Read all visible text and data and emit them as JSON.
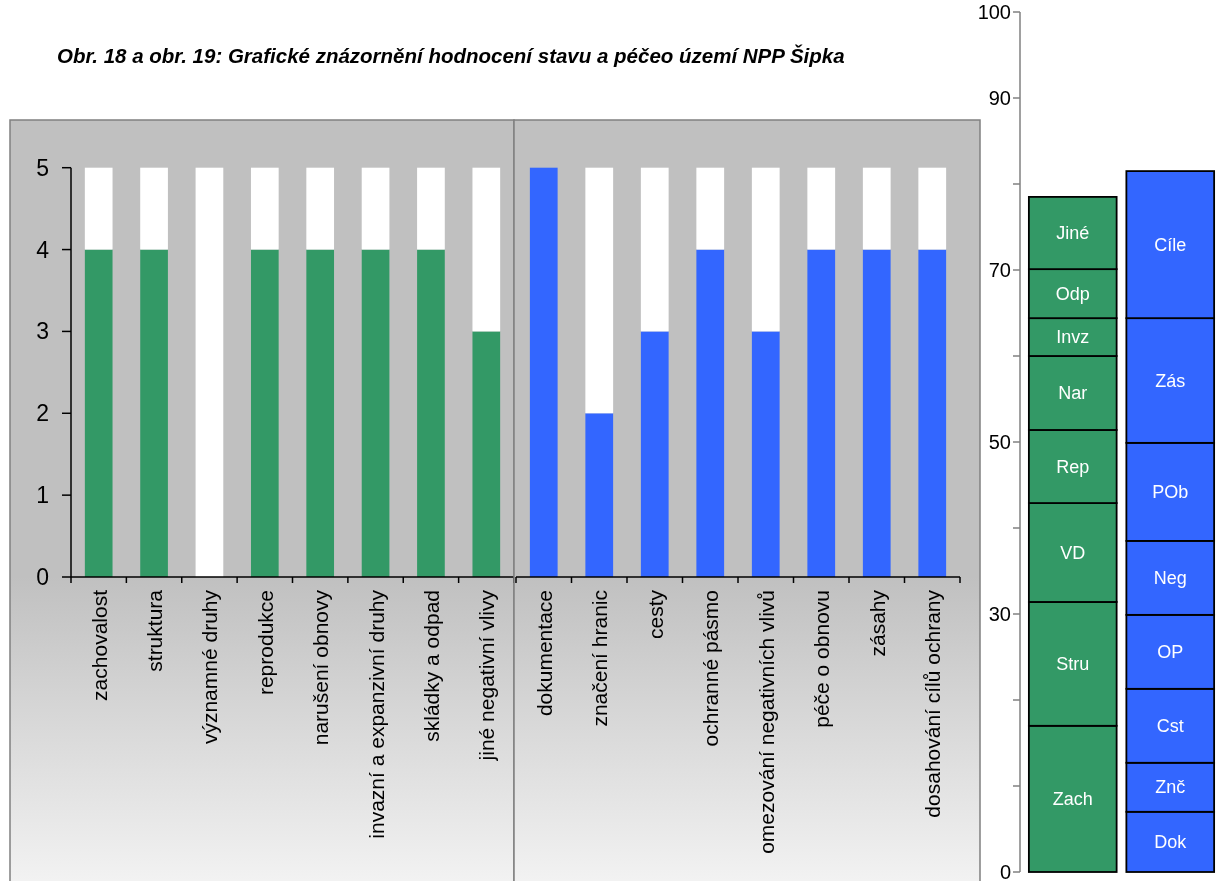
{
  "chart_data": [
    {
      "type": "bar",
      "title": "Obr. 18 a obr. 19: Grafické znázornění hodnocení stavu a péčeo území NPP Šipka",
      "categories": [
        "zachovalost",
        "struktura",
        "významné druhy",
        "reprodukce",
        "narušení obnovy",
        "invazní a expanzivní druhy",
        "skládky a odpad",
        "jiné negativní vlivy"
      ],
      "stacked": true,
      "series": [
        {
          "color": "#339966",
          "values": [
            4,
            4,
            0,
            4,
            4,
            4,
            4,
            3
          ]
        },
        {
          "color": "#ffffff",
          "values": [
            1,
            1,
            5,
            1,
            1,
            1,
            1,
            2
          ]
        }
      ],
      "ylim": [
        0,
        5
      ],
      "yticks": [
        0,
        1,
        2,
        3,
        4,
        5
      ]
    },
    {
      "type": "bar",
      "categories": [
        "dokumentace",
        "značení hranic",
        "cesty",
        "ochranné pásmo",
        "omezování negativních vlivů",
        "péče o obnovu",
        "zásahy",
        "dosahování cílů ochrany"
      ],
      "stacked": true,
      "series": [
        {
          "color": "#3366ff",
          "values": [
            5,
            2,
            3,
            4,
            3,
            4,
            4,
            4
          ]
        },
        {
          "color": "#ffffff",
          "values": [
            0,
            3,
            2,
            1,
            2,
            1,
            1,
            1
          ]
        }
      ],
      "ylim": [
        0,
        5
      ],
      "tick_labels": "x"
    },
    {
      "type": "bar",
      "categories": [
        null,
        null
      ],
      "stacked": true,
      "series": [
        {
          "name": "Zach",
          "color": "#339966",
          "values": [
            17.0,
            null
          ]
        },
        {
          "name": "Stru",
          "color": "#339966",
          "values": [
            14.4,
            null
          ]
        },
        {
          "name": "VD",
          "color": "#339966",
          "values": [
            11.5,
            null
          ]
        },
        {
          "name": "Rep",
          "color": "#339966",
          "values": [
            8.5,
            null
          ]
        },
        {
          "name": "Nar",
          "color": "#339966",
          "values": [
            8.6,
            null
          ]
        },
        {
          "name": "Invz",
          "color": "#339966",
          "values": [
            4.4,
            null
          ]
        },
        {
          "name": "Odp",
          "color": "#339966",
          "values": [
            5.7,
            null
          ]
        },
        {
          "name": "Jiné",
          "color": "#339966",
          "values": [
            8.4,
            null
          ]
        },
        {
          "name": "Dok",
          "color": "#3366ff",
          "values": [
            null,
            7.0
          ]
        },
        {
          "name": "Znč",
          "color": "#3366ff",
          "values": [
            null,
            5.7
          ]
        },
        {
          "name": "Cst",
          "color": "#3366ff",
          "values": [
            null,
            8.6
          ]
        },
        {
          "name": "OP",
          "color": "#3366ff",
          "values": [
            null,
            8.6
          ]
        },
        {
          "name": "Neg",
          "color": "#3366ff",
          "values": [
            null,
            8.6
          ]
        },
        {
          "name": "POb",
          "color": "#3366ff",
          "values": [
            null,
            11.4
          ]
        },
        {
          "name": "Zás",
          "color": "#3366ff",
          "values": [
            null,
            14.5
          ]
        },
        {
          "name": "Cíle",
          "color": "#3366ff",
          "values": [
            null,
            17.1
          ]
        }
      ],
      "ylim": [
        0,
        100
      ],
      "yticks": [
        0,
        {
          "value": 10,
          "label": null
        },
        {
          "value": 20,
          "label": null
        },
        30,
        {
          "value": 40,
          "label": null
        },
        50,
        {
          "value": 60,
          "label": null
        },
        70,
        {
          "value": 80,
          "label": null
        },
        90,
        100
      ],
      "tick_labels": "y"
    }
  ]
}
